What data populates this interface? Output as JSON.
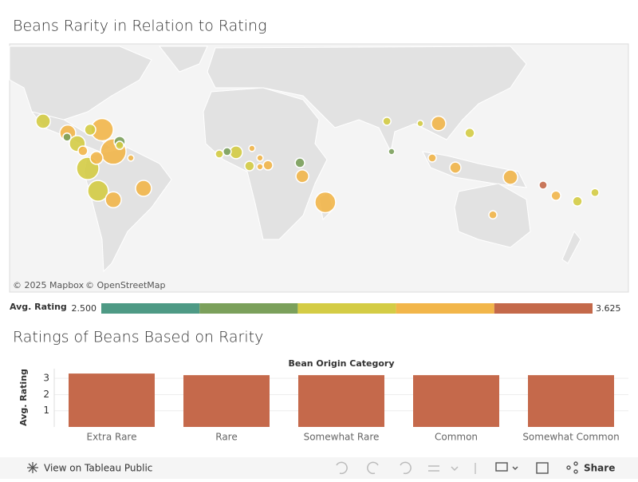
{
  "toolbar": {
    "view": "View on Tableau Public",
    "share": "Share"
  },
  "chart_data": [
    {
      "type": "map",
      "title": "Beans Rarity in Relation to Rating",
      "attribution": [
        "© 2025 Mapbox",
        "© OpenStreetMap"
      ],
      "lon": [
        -106.8,
        -93.6,
        -94,
        -88.5,
        -85.5,
        -81.6,
        -75.2,
        -65.8,
        -65.8,
        -69.2,
        -78.2,
        -82.9,
        -77.4,
        -69.2,
        -53,
        -59.8,
        -12.4,
        -8.2,
        -3.4,
        5.1,
        3.8,
        9.4,
        9.4,
        13.7,
        30.8,
        32.1,
        44.4,
        77.4,
        79.9,
        95.3,
        105.1,
        121.8,
        101.7,
        114.1,
        143.6,
        161.1,
        168,
        179.5,
        188.9,
        134.2
      ],
      "lat": [
        23.3,
        17.4,
        15.3,
        11.9,
        8.1,
        19.1,
        19.1,
        12.8,
        11,
        7.7,
        4.3,
        -1.3,
        -13.2,
        -17.8,
        -11.9,
        4.3,
        6.4,
        7.7,
        7.3,
        9.4,
        0,
        4.3,
        -0.4,
        0.4,
        1.7,
        -5.5,
        -19.1,
        23.3,
        7.7,
        22.2,
        22.2,
        17.4,
        4.3,
        -0.9,
        -6,
        -10.2,
        -15.7,
        -18.6,
        -14.1,
        -25.3
      ],
      "values": [
        3.05,
        3.25,
        2.85,
        3.1,
        3.25,
        3.1,
        3.3,
        2.9,
        3.0,
        3.3,
        3.2,
        3.1,
        3.1,
        3.25,
        3.25,
        3.2,
        3.05,
        2.85,
        3.0,
        3.2,
        3.1,
        3.25,
        3.2,
        3.25,
        2.85,
        3.25,
        3.3,
        3.05,
        2.85,
        3.05,
        3.25,
        3.05,
        3.2,
        3.25,
        3.25,
        3.5,
        3.25,
        3.05,
        3.1,
        3.25
      ],
      "size": [
        32,
        39,
        10,
        39,
        14,
        19,
        77,
        19,
        10,
        100,
        25,
        77,
        66,
        39,
        39,
        6,
        10,
        10,
        25,
        6,
        14,
        6,
        6,
        14,
        14,
        25,
        66,
        10,
        6,
        6,
        32,
        14,
        10,
        19,
        32,
        10,
        14,
        14,
        10,
        10
      ],
      "color_legend": {
        "title": "Avg. Rating",
        "lim": [
          2.5,
          3.625
        ],
        "colors": [
          "#4e9a85",
          "#7ba05b",
          "#d4cc45",
          "#f2b64a",
          "#c4694a"
        ],
        "ticks": [
          {
            "value": 2.5,
            "label": "2.500"
          },
          {
            "value": 3.625,
            "label": "3.625"
          }
        ]
      }
    },
    {
      "type": "bar",
      "title": "Ratings of Beans Based on Rarity",
      "header": "Bean Origin Category",
      "y_label": "Avg. Rating",
      "categories": [
        "Extra Rare",
        "Rare",
        "Somewhat Rare",
        "Common",
        "Somewhat Common"
      ],
      "values": [
        3.3,
        3.2,
        3.2,
        3.2,
        3.2
      ],
      "color": "#c5694b",
      "ylim": [
        0,
        3.6
      ],
      "yticks": [
        1,
        2,
        3
      ],
      "grid": true
    }
  ]
}
